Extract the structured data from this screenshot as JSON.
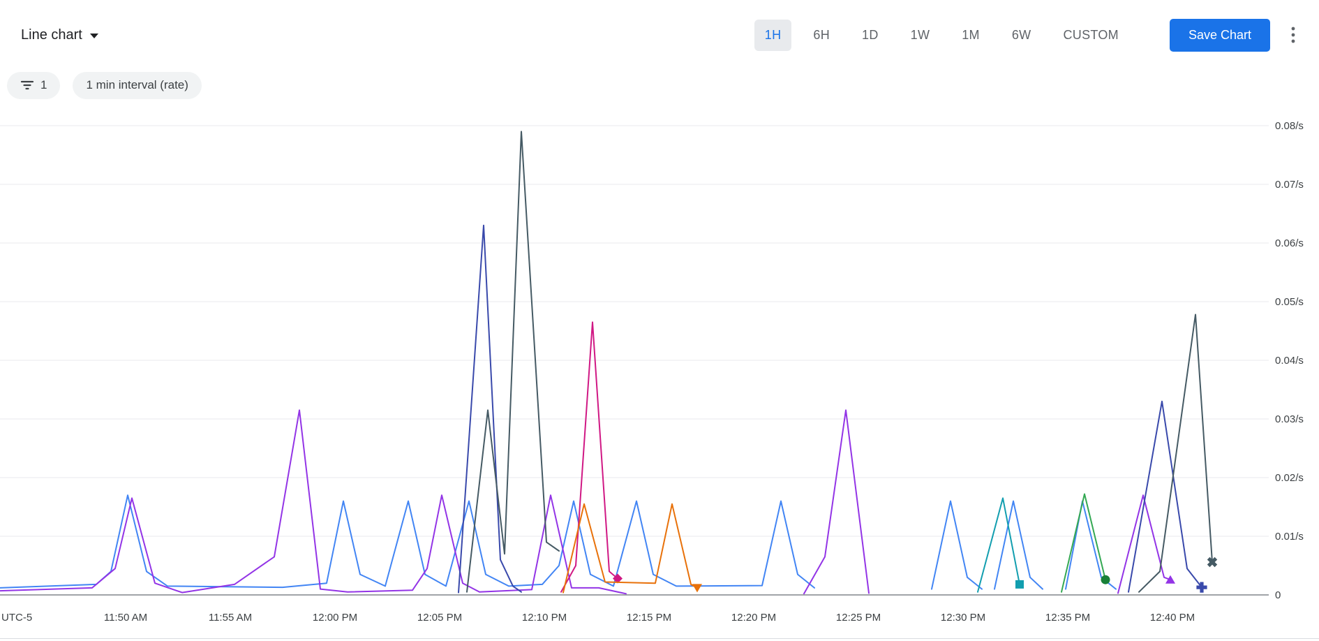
{
  "ui_colors": {
    "accent": "#1a73e8",
    "active_range_bg": "#e8eaed",
    "chip_bg": "#f1f3f4",
    "text_primary": "#202124",
    "text_secondary": "#5f6368"
  },
  "toolbar": {
    "chart_type_label": "Line chart",
    "time_ranges": [
      {
        "label": "1H",
        "active": true
      },
      {
        "label": "6H",
        "active": false
      },
      {
        "label": "1D",
        "active": false
      },
      {
        "label": "1W",
        "active": false
      },
      {
        "label": "1M",
        "active": false
      },
      {
        "label": "6W",
        "active": false
      },
      {
        "label": "CUSTOM",
        "active": false
      }
    ],
    "save_button_label": "Save Chart"
  },
  "filters": {
    "filter_count": "1",
    "interval_label": "1 min interval (rate)"
  },
  "chart_data": {
    "type": "line",
    "title": "",
    "legend": "none",
    "grid": true,
    "x_axis": {
      "timezone_label": "UTC-5",
      "x_unit": "minutes_from_chart_left_edge",
      "range_minutes": [
        0,
        60.6
      ],
      "ticks": [
        {
          "label": "11:50 AM",
          "t": 6
        },
        {
          "label": "11:55 AM",
          "t": 11
        },
        {
          "label": "12:00 PM",
          "t": 16
        },
        {
          "label": "12:05 PM",
          "t": 21
        },
        {
          "label": "12:10 PM",
          "t": 26
        },
        {
          "label": "12:15 PM",
          "t": 31
        },
        {
          "label": "12:20 PM",
          "t": 36
        },
        {
          "label": "12:25 PM",
          "t": 41
        },
        {
          "label": "12:30 PM",
          "t": 46
        },
        {
          "label": "12:35 PM",
          "t": 51
        },
        {
          "label": "12:40 PM",
          "t": 56
        }
      ]
    },
    "y_axis": {
      "unit": "/s",
      "min": 0,
      "max": 0.08,
      "ticks": [
        {
          "label": "0.08/s",
          "value": 0.08
        },
        {
          "label": "0.07/s",
          "value": 0.07
        },
        {
          "label": "0.06/s",
          "value": 0.06
        },
        {
          "label": "0.05/s",
          "value": 0.05
        },
        {
          "label": "0.04/s",
          "value": 0.04
        },
        {
          "label": "0.03/s",
          "value": 0.03
        },
        {
          "label": "0.02/s",
          "value": 0.02
        },
        {
          "label": "0.01/s",
          "value": 0.01
        },
        {
          "label": "0",
          "value": 0
        }
      ]
    },
    "series": [
      {
        "name": "series-blue",
        "color": "#4285f4",
        "marker": null,
        "segments": [
          [
            [
              0,
              0.0012
            ],
            [
              4.6,
              0.0018
            ],
            [
              5.3,
              0.004
            ],
            [
              6.1,
              0.017
            ],
            [
              7.0,
              0.004
            ],
            [
              8.0,
              0.0015
            ],
            [
              13.5,
              0.0013
            ],
            [
              15.6,
              0.002
            ],
            [
              16.4,
              0.016
            ],
            [
              17.2,
              0.0035
            ],
            [
              18.4,
              0.0015
            ],
            [
              19.5,
              0.016
            ],
            [
              20.3,
              0.0035
            ],
            [
              21.3,
              0.0015
            ],
            [
              22.4,
              0.016
            ],
            [
              23.2,
              0.0035
            ],
            [
              24.3,
              0.0015
            ],
            [
              25.9,
              0.0018
            ],
            [
              26.7,
              0.005
            ],
            [
              27.4,
              0.016
            ],
            [
              28.2,
              0.0035
            ],
            [
              29.3,
              0.0015
            ],
            [
              30.4,
              0.016
            ],
            [
              31.2,
              0.0035
            ],
            [
              32.3,
              0.0015
            ],
            [
              36.4,
              0.0016
            ],
            [
              37.3,
              0.016
            ],
            [
              38.1,
              0.0035
            ],
            [
              38.9,
              0.0012
            ]
          ],
          [
            [
              44.5,
              0.001
            ],
            [
              45.4,
              0.016
            ],
            [
              46.2,
              0.003
            ],
            [
              46.9,
              0.001
            ]
          ],
          [
            [
              47.5,
              0.001
            ],
            [
              48.4,
              0.016
            ],
            [
              49.2,
              0.003
            ],
            [
              49.8,
              0.001
            ]
          ],
          [
            [
              50.9,
              0.001
            ],
            [
              51.7,
              0.016
            ],
            [
              52.6,
              0.003
            ],
            [
              53.3,
              0.001
            ]
          ]
        ]
      },
      {
        "name": "series-purple",
        "color": "#9334e6",
        "marker": "triangle-up",
        "marker_point": [
          55.9,
          0.0026
        ],
        "segments": [
          [
            [
              0,
              0.0007
            ],
            [
              4.4,
              0.0012
            ],
            [
              5.5,
              0.0045
            ],
            [
              6.3,
              0.0165
            ],
            [
              7.4,
              0.002
            ],
            [
              8.7,
              0.0004
            ],
            [
              11.2,
              0.0018
            ],
            [
              13.1,
              0.0065
            ],
            [
              14.3,
              0.0315
            ],
            [
              15.3,
              0.001
            ],
            [
              16.6,
              0.0005
            ],
            [
              19.7,
              0.0008
            ],
            [
              20.4,
              0.0045
            ],
            [
              21.1,
              0.017
            ],
            [
              22.1,
              0.002
            ],
            [
              22.9,
              0.0005
            ],
            [
              25.4,
              0.0009
            ],
            [
              26.3,
              0.017
            ],
            [
              27.3,
              0.0012
            ],
            [
              28.6,
              0.0012
            ],
            [
              29.9,
              0.0002
            ]
          ],
          [
            [
              38.4,
              0.0002
            ],
            [
              39.4,
              0.0065
            ],
            [
              40.4,
              0.0315
            ],
            [
              41.5,
              0.0003
            ]
          ],
          [
            [
              53.4,
              0.0003
            ],
            [
              54.6,
              0.017
            ],
            [
              55.6,
              0.003
            ],
            [
              55.9,
              0.0026
            ]
          ]
        ]
      },
      {
        "name": "series-navy",
        "color": "#3949ab",
        "marker": "plus",
        "marker_point": [
          57.4,
          0.0013
        ],
        "segments": [
          [
            [
              21.9,
              0.0004
            ],
            [
              23.1,
              0.063
            ],
            [
              23.9,
              0.006
            ],
            [
              24.5,
              0.0015
            ],
            [
              24.9,
              0.0005
            ]
          ],
          [
            [
              53.9,
              0.0005
            ],
            [
              55.5,
              0.033
            ],
            [
              56.7,
              0.0045
            ],
            [
              57.4,
              0.0013
            ]
          ]
        ]
      },
      {
        "name": "series-slate",
        "color": "#455a64",
        "marker": "x",
        "marker_point": [
          57.9,
          0.0056
        ],
        "segments": [
          [
            [
              22.3,
              0.0005
            ],
            [
              23.3,
              0.0315
            ],
            [
              24.1,
              0.007
            ],
            [
              24.9,
              0.079
            ],
            [
              26.1,
              0.009
            ],
            [
              26.7,
              0.0075
            ]
          ],
          [
            [
              54.4,
              0.0005
            ],
            [
              55.4,
              0.004
            ],
            [
              57.1,
              0.0478
            ],
            [
              57.9,
              0.0056
            ]
          ]
        ]
      },
      {
        "name": "series-pink",
        "color": "#d01884",
        "marker": "diamond",
        "marker_point": [
          29.5,
          0.0028
        ],
        "segments": [
          [
            [
              26.8,
              0.0005
            ],
            [
              27.5,
              0.005
            ],
            [
              28.3,
              0.0465
            ],
            [
              29.1,
              0.004
            ],
            [
              29.5,
              0.0028
            ]
          ]
        ]
      },
      {
        "name": "series-orange",
        "color": "#e8710a",
        "marker": "triangle-down",
        "marker_point": [
          33.3,
          0.0012
        ],
        "segments": [
          [
            [
              26.9,
              0.0004
            ],
            [
              27.9,
              0.0155
            ],
            [
              28.9,
              0.0022
            ],
            [
              31.3,
              0.002
            ],
            [
              32.1,
              0.0155
            ],
            [
              33.0,
              0.0018
            ],
            [
              33.3,
              0.0012
            ]
          ]
        ]
      },
      {
        "name": "series-teal",
        "color": "#129eaf",
        "marker": "square",
        "marker_point": [
          48.7,
          0.0018
        ],
        "segments": [
          [
            [
              46.7,
              0.0005
            ],
            [
              47.9,
              0.0165
            ],
            [
              48.7,
              0.0018
            ]
          ]
        ]
      },
      {
        "name": "series-green",
        "color": "#34a853",
        "marker": "circle",
        "marker_color": "#188038",
        "marker_point": [
          52.8,
          0.0026
        ],
        "segments": [
          [
            [
              50.7,
              0.0005
            ],
            [
              51.8,
              0.0172
            ],
            [
              52.8,
              0.0026
            ]
          ]
        ]
      }
    ]
  }
}
